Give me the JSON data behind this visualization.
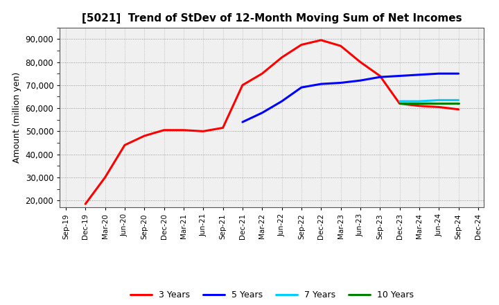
{
  "title": "[5021]  Trend of StDev of 12-Month Moving Sum of Net Incomes",
  "ylabel": "Amount (million yen)",
  "background_color": "#ffffff",
  "plot_bg_color": "#f0f0f0",
  "grid_color": "#888888",
  "ylim": [
    17000,
    95000
  ],
  "yticks": [
    20000,
    30000,
    40000,
    50000,
    60000,
    70000,
    80000,
    90000
  ],
  "series": {
    "3 Years": {
      "color": "#ff0000",
      "data": [
        [
          "Sep-19",
          null
        ],
        [
          "Dec-19",
          18500
        ],
        [
          "Mar-20",
          30000
        ],
        [
          "Jun-20",
          44000
        ],
        [
          "Sep-20",
          48000
        ],
        [
          "Dec-20",
          50500
        ],
        [
          "Mar-21",
          50500
        ],
        [
          "Jun-21",
          50000
        ],
        [
          "Sep-21",
          51500
        ],
        [
          "Dec-21",
          70000
        ],
        [
          "Mar-22",
          75000
        ],
        [
          "Jun-22",
          82000
        ],
        [
          "Sep-22",
          87500
        ],
        [
          "Dec-22",
          89500
        ],
        [
          "Mar-23",
          87000
        ],
        [
          "Jun-23",
          80000
        ],
        [
          "Sep-23",
          74000
        ],
        [
          "Dec-23",
          62000
        ],
        [
          "Mar-24",
          61000
        ],
        [
          "Jun-24",
          60500
        ],
        [
          "Sep-24",
          59500
        ],
        [
          "Dec-24",
          null
        ]
      ]
    },
    "5 Years": {
      "color": "#0000ff",
      "data": [
        [
          "Sep-19",
          null
        ],
        [
          "Dec-19",
          null
        ],
        [
          "Mar-20",
          null
        ],
        [
          "Jun-20",
          null
        ],
        [
          "Sep-20",
          null
        ],
        [
          "Dec-20",
          null
        ],
        [
          "Mar-21",
          null
        ],
        [
          "Jun-21",
          null
        ],
        [
          "Sep-21",
          null
        ],
        [
          "Dec-21",
          54000
        ],
        [
          "Mar-22",
          58000
        ],
        [
          "Jun-22",
          63000
        ],
        [
          "Sep-22",
          69000
        ],
        [
          "Dec-22",
          70500
        ],
        [
          "Mar-23",
          71000
        ],
        [
          "Jun-23",
          72000
        ],
        [
          "Sep-23",
          73500
        ],
        [
          "Dec-23",
          74000
        ],
        [
          "Mar-24",
          74500
        ],
        [
          "Jun-24",
          75000
        ],
        [
          "Sep-24",
          75000
        ],
        [
          "Dec-24",
          null
        ]
      ]
    },
    "7 Years": {
      "color": "#00ccff",
      "data": [
        [
          "Sep-19",
          null
        ],
        [
          "Dec-19",
          null
        ],
        [
          "Mar-20",
          null
        ],
        [
          "Jun-20",
          null
        ],
        [
          "Sep-20",
          null
        ],
        [
          "Dec-20",
          null
        ],
        [
          "Mar-21",
          null
        ],
        [
          "Jun-21",
          null
        ],
        [
          "Sep-21",
          null
        ],
        [
          "Dec-21",
          null
        ],
        [
          "Mar-22",
          null
        ],
        [
          "Jun-22",
          null
        ],
        [
          "Sep-22",
          null
        ],
        [
          "Dec-22",
          null
        ],
        [
          "Mar-23",
          null
        ],
        [
          "Jun-23",
          null
        ],
        [
          "Sep-23",
          null
        ],
        [
          "Dec-23",
          63000
        ],
        [
          "Mar-24",
          63000
        ],
        [
          "Jun-24",
          63500
        ],
        [
          "Sep-24",
          63500
        ],
        [
          "Dec-24",
          null
        ]
      ]
    },
    "10 Years": {
      "color": "#008000",
      "data": [
        [
          "Sep-19",
          null
        ],
        [
          "Dec-19",
          null
        ],
        [
          "Mar-20",
          null
        ],
        [
          "Jun-20",
          null
        ],
        [
          "Sep-20",
          null
        ],
        [
          "Dec-20",
          null
        ],
        [
          "Mar-21",
          null
        ],
        [
          "Jun-21",
          null
        ],
        [
          "Sep-21",
          null
        ],
        [
          "Dec-21",
          null
        ],
        [
          "Mar-22",
          null
        ],
        [
          "Jun-22",
          null
        ],
        [
          "Sep-22",
          null
        ],
        [
          "Dec-22",
          null
        ],
        [
          "Mar-23",
          null
        ],
        [
          "Jun-23",
          null
        ],
        [
          "Sep-23",
          null
        ],
        [
          "Dec-23",
          62000
        ],
        [
          "Mar-24",
          62000
        ],
        [
          "Jun-24",
          62000
        ],
        [
          "Sep-24",
          62000
        ],
        [
          "Dec-24",
          null
        ]
      ]
    }
  },
  "x_tick_labels": [
    "Sep-19",
    "Dec-19",
    "Mar-20",
    "Jun-20",
    "Sep-20",
    "Dec-20",
    "Mar-21",
    "Jun-21",
    "Sep-21",
    "Dec-21",
    "Mar-22",
    "Jun-22",
    "Sep-22",
    "Dec-22",
    "Mar-23",
    "Jun-23",
    "Sep-23",
    "Dec-23",
    "Mar-24",
    "Jun-24",
    "Sep-24",
    "Dec-24"
  ],
  "legend_order": [
    "3 Years",
    "5 Years",
    "7 Years",
    "10 Years"
  ]
}
